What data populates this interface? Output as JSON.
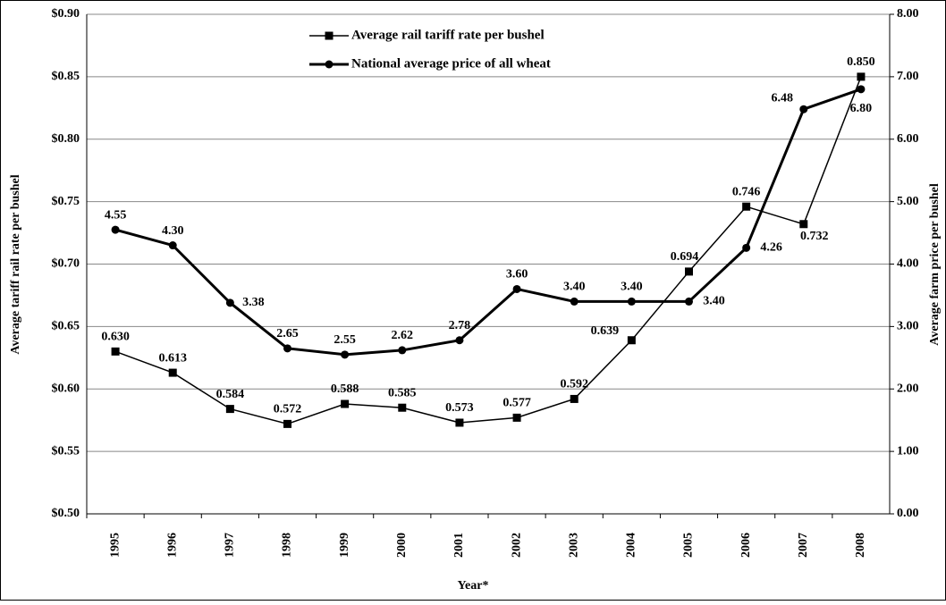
{
  "chart_data": {
    "type": "line",
    "categories": [
      "1995",
      "1996",
      "1997",
      "1998",
      "1999",
      "2000",
      "2001",
      "2002",
      "2003",
      "2004",
      "2005",
      "2006",
      "2007",
      "2008"
    ],
    "series": [
      {
        "name": "Average rail tariff rate per bushel",
        "color": "#000000",
        "marker": "square",
        "values": [
          0.63,
          0.613,
          0.584,
          0.572,
          0.588,
          0.585,
          0.573,
          0.577,
          0.592,
          0.639,
          0.694,
          0.746,
          0.732,
          0.85
        ],
        "value_labels": [
          "0.630",
          "0.613",
          "0.584",
          "0.572",
          "0.588",
          "0.585",
          "0.573",
          "0.577",
          "0.592",
          "0.639",
          "0.694",
          "0.746",
          "0.732",
          "0.850"
        ]
      },
      {
        "name": "National average price of all wheat",
        "color": "#000000",
        "marker": "circle",
        "axis": "y2",
        "values": [
          4.55,
          4.3,
          3.38,
          2.65,
          2.55,
          2.62,
          2.78,
          3.6,
          3.4,
          3.4,
          3.4,
          4.26,
          6.48,
          6.8
        ],
        "value_labels": [
          "4.55",
          "4.30",
          "3.38",
          "2.65",
          "2.55",
          "2.62",
          "2.78",
          "3.60",
          "3.40",
          "3.40",
          "3.40",
          "4.26",
          "6.48",
          "6.80"
        ]
      }
    ],
    "x_label": "Year*",
    "y_label": "Average tariff rail rate per bushel",
    "y2_label": "Average farm price per bushel",
    "ylim": [
      0.5,
      0.9
    ],
    "yticks": [
      {
        "value": 0.5,
        "label": "$0.50"
      },
      {
        "value": 0.55,
        "label": "$0.55"
      },
      {
        "value": 0.6,
        "label": "$0.60"
      },
      {
        "value": 0.65,
        "label": "$0.65"
      },
      {
        "value": 0.7,
        "label": "$0.70"
      },
      {
        "value": 0.75,
        "label": "$0.75"
      },
      {
        "value": 0.8,
        "label": "$0.80"
      },
      {
        "value": 0.85,
        "label": "$0.85"
      },
      {
        "value": 0.9,
        "label": "$0.90"
      }
    ],
    "y2lim": [
      0,
      8
    ],
    "y2ticks": [
      {
        "value": 0,
        "label": "0.00"
      },
      {
        "value": 1,
        "label": "1.00"
      },
      {
        "value": 2,
        "label": "2.00"
      },
      {
        "value": 3,
        "label": "3.00"
      },
      {
        "value": 4,
        "label": "4.00"
      },
      {
        "value": 5,
        "label": "5.00"
      },
      {
        "value": 6,
        "label": "6.00"
      },
      {
        "value": 7,
        "label": "7.00"
      },
      {
        "value": 8,
        "label": "8.00"
      }
    ],
    "grid": true
  }
}
